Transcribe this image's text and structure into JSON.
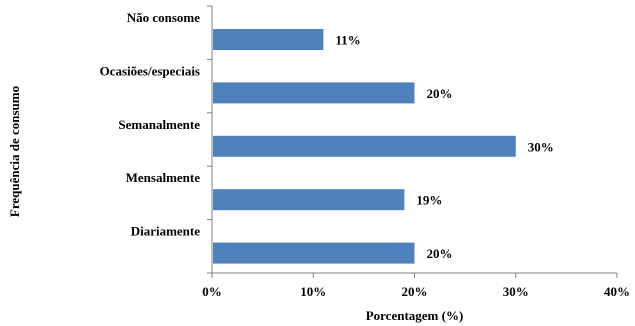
{
  "chart_data": {
    "type": "bar",
    "orientation": "horizontal",
    "categories": [
      "Não consome",
      "Ocasiões/especiais",
      "Semanalmente",
      "Mensalmente",
      "Diariamente"
    ],
    "values": [
      11,
      20,
      30,
      19,
      20
    ],
    "data_labels": [
      "11%",
      "20%",
      "30%",
      "19%",
      "20%"
    ],
    "xlabel": "Porcentagem  (%)",
    "ylabel": "Frequência de consumo",
    "xlim": [
      0,
      40
    ],
    "x_ticks": [
      0,
      10,
      20,
      30,
      40
    ],
    "x_tick_labels": [
      "0%",
      "10%",
      "20%",
      "30%",
      "40%"
    ],
    "grid": false,
    "bar_color": "#4f81bd"
  }
}
